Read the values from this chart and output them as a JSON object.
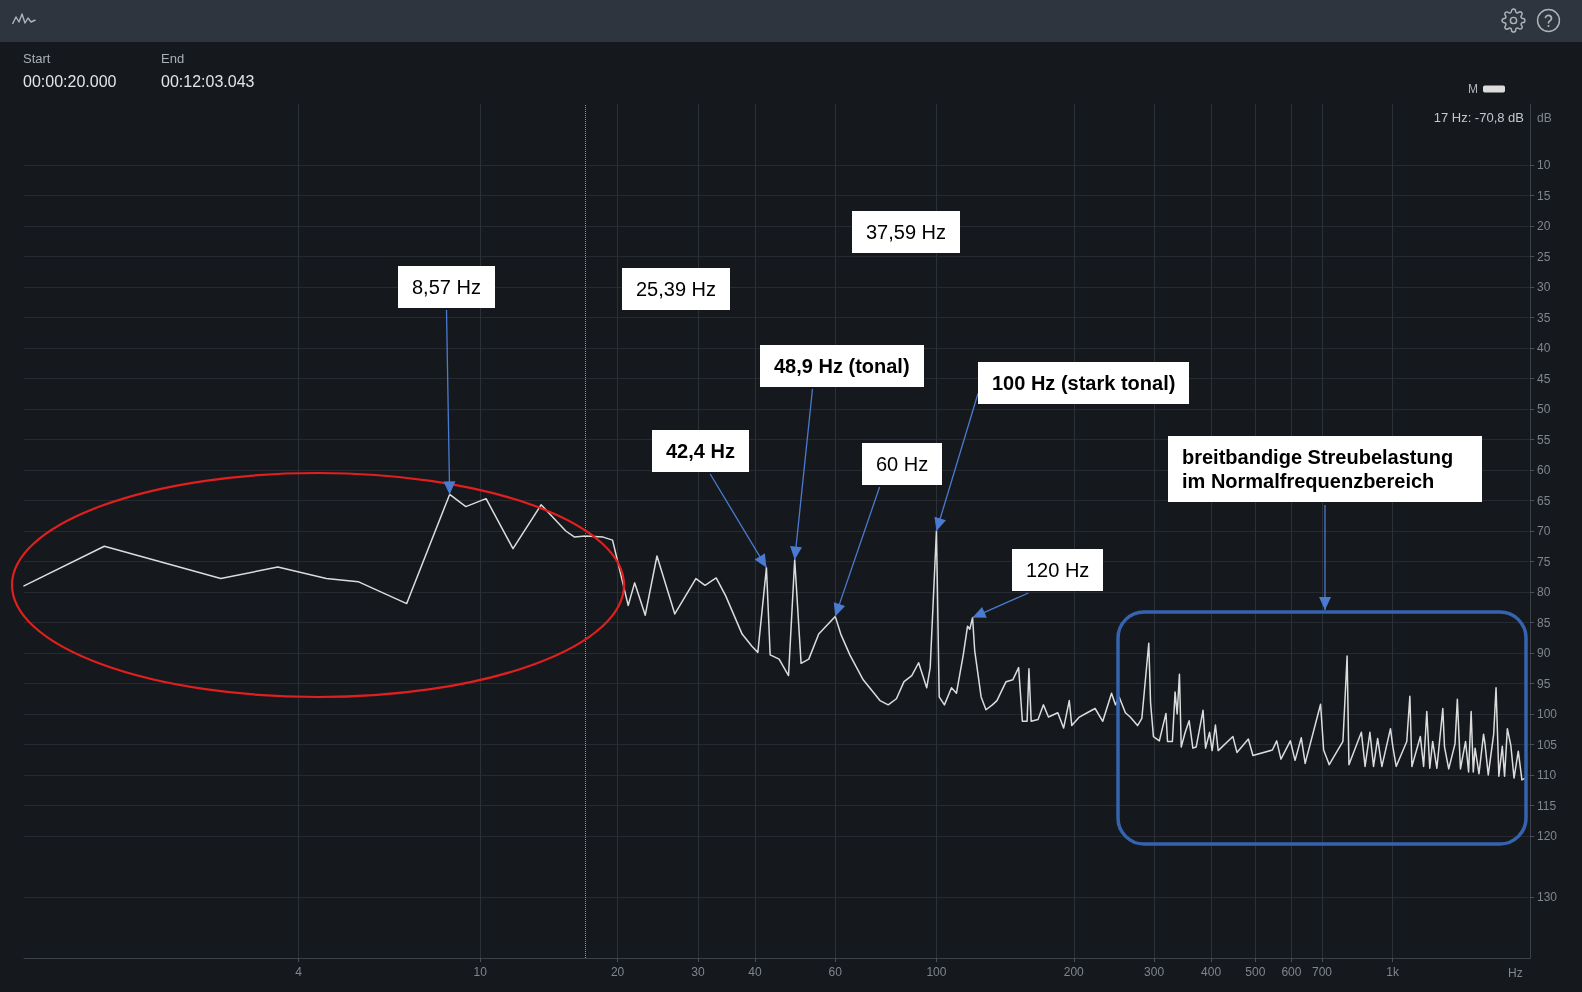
{
  "chart_data": {
    "type": "line",
    "annotations": [
      "Start",
      "00:00:20.000",
      "End",
      "00:12:03.043",
      "17 Hz: -70,8 dB",
      "37,59 Hz",
      {
        "text": "8,57 Hz",
        "x": 8.57,
        "y": -64
      },
      "25,39 Hz",
      {
        "text": "48,9 Hz (tonal)",
        "x": 48.9,
        "y": -74.7
      },
      {
        "text": "42,4 Hz",
        "x": 42.4,
        "y": -76
      },
      {
        "text": "60 Hz",
        "x": 60,
        "y": -84
      },
      {
        "text": "100 Hz (stark tonal)",
        "x": 100,
        "y": -70
      },
      {
        "text": "120 Hz",
        "x": 120,
        "y": -84.2
      },
      "breitbandige Streubelastung im Normalfrequenzbereich"
    ],
    "xlabel": "Hz",
    "ylabel": "dB",
    "x": [
      1,
      1.5,
      2.7,
      3.6,
      4.6,
      5.4,
      6.9,
      8.57,
      9.3,
      10.3,
      11.8,
      13.6,
      15.4,
      16.1,
      17,
      18.6,
      19.5,
      21.1,
      21.8,
      23,
      24.4,
      26.7,
      29.7,
      31.1,
      32.9,
      34.5,
      37.5,
      39.4,
      40.6,
      42.4,
      43.2,
      45.2,
      47.4,
      48.9,
      50.5,
      52.5,
      55.2,
      60,
      61.7,
      64.6,
      69.1,
      75.2,
      78.4,
      81.7,
      84.9,
      88.3,
      91.4,
      95.2,
      96.9,
      100,
      101.4,
      104.1,
      107.9,
      110.6,
      114.5,
      117,
      118.3,
      120,
      121.3,
      125.3,
      128.4,
      132.6,
      135.7,
      142.1,
      147,
      151.4,
      154.3,
      158,
      159.5,
      161.3,
      167,
      171.6,
      176,
      184.5,
      190,
      195.5,
      198,
      205.7,
      214,
      222.7,
      231.5,
      242,
      246.8,
      251.5,
      259.5,
      265.9,
      275.9,
      282,
      292,
      294.7,
      299,
      308,
      318.5,
      321,
      329,
      333.5,
      337,
      340.9,
      344,
      351,
      358,
      364.8,
      371,
      384,
      389,
      397,
      402,
      408.8,
      414.5,
      446.5,
      455.7,
      482.7,
      494,
      545,
      557,
      569,
      596.7,
      611,
      630.5,
      643,
      695,
      705.8,
      726,
      778,
      794.6,
      802,
      854,
      870,
      891.5,
      908,
      927,
      947,
      989,
      1001,
      1018,
      1073.8,
      1090.7,
      1102,
      1150,
      1169,
      1188,
      1206,
      1223.7,
      1250,
      1288,
      1299,
      1327,
      1369.8,
      1386,
      1408,
      1444.7,
      1467,
      1486,
      1502,
      1516,
      1546,
      1582,
      1593,
      1620,
      1665,
      1685,
      1709,
      1739,
      1759,
      1784,
      1816,
      1845,
      1885,
      1920,
      1954
    ],
    "series": [
      {
        "name": "M",
        "color": "#dcdcdc",
        "values": [
          -79,
          -72.5,
          -77.8,
          -75.9,
          -77.8,
          -78.3,
          -81.9,
          -64,
          -66,
          -64.7,
          -72.9,
          -65.7,
          -70,
          -71,
          -70.8,
          -71,
          -71.5,
          -82.2,
          -78.5,
          -83.8,
          -74.1,
          -83.6,
          -77.8,
          -78.9,
          -77.7,
          -80.6,
          -86.9,
          -88.9,
          -89.9,
          -76,
          -90.3,
          -91,
          -93.7,
          -74.7,
          -91.7,
          -91,
          -86.9,
          -84,
          -86.9,
          -90.3,
          -94.4,
          -97.8,
          -98.5,
          -97.5,
          -94.7,
          -93.7,
          -91.6,
          -95.7,
          -92.4,
          -70,
          -97.2,
          -98.5,
          -95.7,
          -96.6,
          -90.3,
          -85.6,
          -86.1,
          -84.2,
          -89.6,
          -97.2,
          -99.3,
          -98.5,
          -97.8,
          -94.7,
          -94.4,
          -92.4,
          -101.2,
          -101.2,
          -92.6,
          -101.2,
          -100.9,
          -98.5,
          -100.5,
          -99.8,
          -102.3,
          -97.8,
          -101.9,
          -100.5,
          -99.8,
          -99.1,
          -101.2,
          -96.6,
          -98.5,
          -97.2,
          -99.8,
          -100.5,
          -101.9,
          -100.7,
          -88.4,
          -98.2,
          -103.7,
          -104.4,
          -99.9,
          -104.5,
          -104.5,
          -96.4,
          -100,
          -93.5,
          -105.4,
          -103,
          -101.1,
          -105.6,
          -105.4,
          -99.4,
          -105.6,
          -103,
          -106,
          -101.8,
          -106,
          -103.7,
          -106.3,
          -104.1,
          -106.8,
          -105.9,
          -104.4,
          -107.4,
          -104.4,
          -107.6,
          -103.9,
          -108.1,
          -98.4,
          -105.9,
          -108.3,
          -104.5,
          -90.5,
          -108.3,
          -103,
          -108.6,
          -103,
          -108.6,
          -104,
          -108.6,
          -102.4,
          -105.4,
          -108.6,
          -104.5,
          -97.1,
          -108.6,
          -103.7,
          -108.6,
          -99.6,
          -108.9,
          -104.5,
          -108.9,
          -99.1,
          -105.4,
          -109,
          -104.9,
          -97.6,
          -109,
          -104.5,
          -109.5,
          -99.6,
          -109.5,
          -105.6,
          -109.8,
          -103.3,
          -104.8,
          -110,
          -103.3,
          -95.7,
          -110.2,
          -105.3,
          -110.2,
          -102.4,
          -105.2,
          -110.5,
          -106.1,
          -110.8,
          -110.5
        ]
      }
    ],
    "xlim": [
      1,
      2000
    ],
    "xticks": [
      4,
      10,
      20,
      30,
      40,
      60,
      100,
      200,
      300,
      400,
      500,
      600,
      700,
      {
        "value": 1000,
        "label": "1k"
      }
    ],
    "ylim": [
      -140,
      0
    ],
    "yticks": [
      {
        "value": -10,
        "label": "10"
      },
      {
        "value": -15,
        "label": "15"
      },
      {
        "value": -20,
        "label": "20"
      },
      {
        "value": -25,
        "label": "25"
      },
      {
        "value": -30,
        "label": "30"
      },
      {
        "value": -35,
        "label": "35"
      },
      {
        "value": -40,
        "label": "40"
      },
      {
        "value": -45,
        "label": "45"
      },
      {
        "value": -50,
        "label": "50"
      },
      {
        "value": -55,
        "label": "55"
      },
      {
        "value": -60,
        "label": "60"
      },
      {
        "value": -65,
        "label": "65"
      },
      {
        "value": -70,
        "label": "70"
      },
      {
        "value": -75,
        "label": "75"
      },
      {
        "value": -80,
        "label": "80"
      },
      {
        "value": -85,
        "label": "85"
      },
      {
        "value": -90,
        "label": "90"
      },
      {
        "value": -95,
        "label": "95"
      },
      {
        "value": -100,
        "label": "100"
      },
      {
        "value": -105,
        "label": "105"
      },
      {
        "value": -110,
        "label": "110"
      },
      {
        "value": -115,
        "label": "115"
      },
      {
        "value": -120,
        "label": "120"
      },
      {
        "value": -130,
        "label": "130"
      }
    ],
    "log": "x",
    "grid": true,
    "legend": "top right",
    "ref_lines": [
      {
        "axis": "x",
        "value": 17,
        "color": "#8d939a",
        "line_style": "dotted"
      }
    ]
  }
}
